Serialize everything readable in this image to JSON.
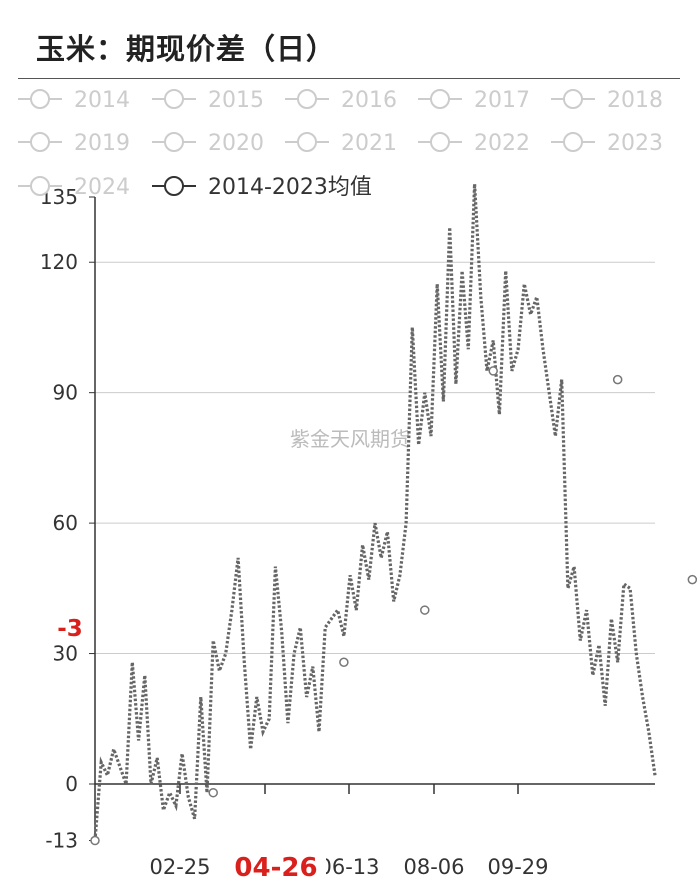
{
  "title": "玉米：期现价差（日）",
  "watermark": "紫金天风期货",
  "colors": {
    "line": "#666666",
    "legend_inactive": "#cccccc",
    "legend_active": "#333333",
    "grid": "#cccccc",
    "highlight": "#d9201c"
  },
  "chart_data": {
    "type": "line",
    "title": "玉米：期现价差（日）",
    "xlabel": "",
    "ylabel": "",
    "ylim": [
      -13,
      135
    ],
    "y_ticks": [
      -13,
      0,
      30,
      60,
      90,
      120,
      135
    ],
    "x_tick_labels": [
      "02-25",
      "04-26",
      "06-13",
      "08-06",
      "09-29"
    ],
    "active_x_label": "04-26",
    "active_y_label": "-3",
    "grid": true,
    "legend_position": "top",
    "legend": [
      {
        "name": "2014",
        "active": false
      },
      {
        "name": "2015",
        "active": false
      },
      {
        "name": "2016",
        "active": false
      },
      {
        "name": "2017",
        "active": false
      },
      {
        "name": "2018",
        "active": false
      },
      {
        "name": "2019",
        "active": false
      },
      {
        "name": "2020",
        "active": false
      },
      {
        "name": "2021",
        "active": false
      },
      {
        "name": "2022",
        "active": false
      },
      {
        "name": "2023",
        "active": false
      },
      {
        "name": "2024",
        "active": false
      },
      {
        "name": "2014-2023均值",
        "active": true
      }
    ],
    "series": [
      {
        "name": "2014-2023均值",
        "style": "dotted",
        "x": [
          0,
          4,
          8,
          12,
          16,
          20,
          24,
          28,
          32,
          36,
          40,
          44,
          48,
          52,
          56,
          60,
          64,
          68,
          72,
          76,
          80,
          84,
          88,
          92,
          96,
          100,
          104,
          108,
          112,
          116,
          120,
          124,
          128,
          132,
          136,
          140,
          144,
          148,
          152,
          156,
          160,
          164,
          168,
          172,
          176,
          180,
          184,
          188,
          192,
          196,
          200,
          204,
          208,
          212,
          216,
          220,
          224,
          228,
          232,
          236,
          240,
          244,
          248,
          252,
          256,
          260,
          264,
          268,
          272,
          276,
          280,
          284,
          288,
          292,
          296,
          300,
          304,
          308,
          312,
          316,
          320,
          324,
          328,
          332,
          336,
          340,
          344,
          348,
          352,
          356,
          360
        ],
        "values": [
          -13,
          5,
          2,
          8,
          4,
          0,
          28,
          10,
          25,
          0,
          6,
          -6,
          -2,
          -5,
          7,
          -3,
          -8,
          20,
          -2,
          33,
          26,
          30,
          40,
          52,
          28,
          8,
          20,
          12,
          15,
          50,
          35,
          14,
          30,
          36,
          20,
          27,
          12,
          36,
          38,
          40,
          34,
          48,
          40,
          55,
          47,
          60,
          52,
          58,
          42,
          48,
          60,
          105,
          78,
          90,
          80,
          115,
          88,
          128,
          92,
          118,
          100,
          138,
          112,
          95,
          102,
          85,
          118,
          95,
          100,
          115,
          108,
          112,
          100,
          90,
          80,
          93,
          45,
          50,
          33,
          40,
          25,
          32,
          18,
          38,
          28,
          46,
          45,
          30,
          20,
          12,
          2
        ],
        "markers": [
          [
            0,
            -13
          ],
          [
            76,
            -2
          ],
          [
            160,
            28
          ],
          [
            212,
            40
          ],
          [
            256,
            95
          ],
          [
            336,
            93
          ],
          [
            384,
            47
          ]
        ]
      }
    ]
  }
}
